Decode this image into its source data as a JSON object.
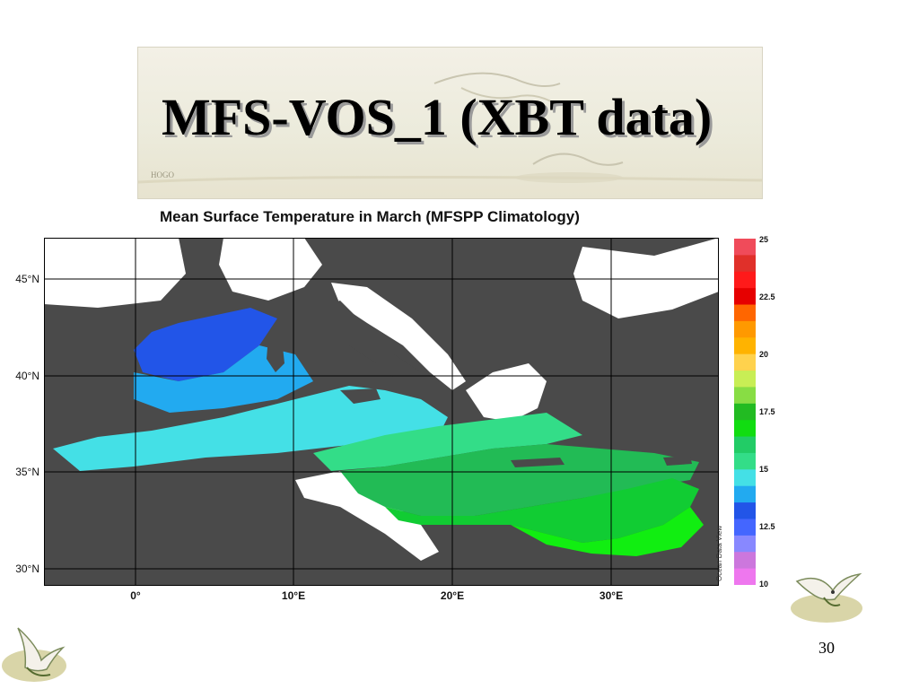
{
  "slide": {
    "title": "MFS-VOS_1 (XBT data)",
    "page_number": "30"
  },
  "map": {
    "title": "Mean Surface Temperature in March (MFSPP Climatology)",
    "lat_labels": [
      "45°N",
      "40°N",
      "35°N",
      "30°N"
    ],
    "lon_labels": [
      "0°",
      "10°E",
      "20°E",
      "30°E"
    ],
    "colorbar": {
      "labels": [
        "25",
        "22.5",
        "20",
        "17.5",
        "15",
        "12.5",
        "10"
      ],
      "colors": [
        "#f04b5a",
        "#e0302a",
        "#ff1a1a",
        "#e60000",
        "#ff6600",
        "#ff9900",
        "#ffb300",
        "#ffd24d",
        "#c8ee55",
        "#88dd44",
        "#22bb22",
        "#11dd11",
        "#22cc66",
        "#33dd88",
        "#44e0e6",
        "#22aaf0",
        "#2255e8",
        "#4466ff",
        "#8888ff",
        "#cc77dd",
        "#ee77ee"
      ],
      "credit": "Ocean Data View"
    },
    "land_color": "#4a4a4a",
    "missing_color": "#ffffff"
  }
}
